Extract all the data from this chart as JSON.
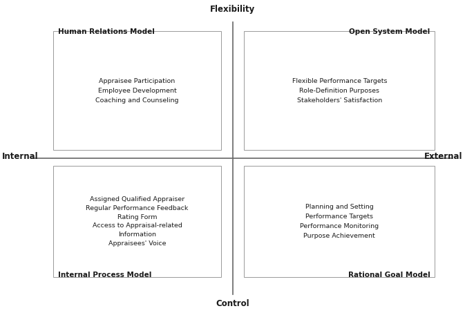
{
  "axis_labels": {
    "top": "Flexibility",
    "bottom": "Control",
    "left": "Internal",
    "right": "External"
  },
  "quadrants": {
    "top_left": {
      "model_name": "Human Relations Model",
      "items": [
        "Appraisee Participation",
        "Employee Development",
        "Coaching and Counseling"
      ]
    },
    "top_right": {
      "model_name": "Open System Model",
      "items": [
        "Flexible Performance Targets",
        "Role-Definition Purposes",
        "Stakeholders' Satisfaction"
      ]
    },
    "bottom_left": {
      "model_name": "Internal Process Model",
      "items": [
        "Assigned Qualified Appraiser",
        "Regular Performance Feedback",
        "Rating Form",
        "Access to Appraisal-related",
        "Information",
        "Appraisees' Voice"
      ]
    },
    "bottom_right": {
      "model_name": "Rational Goal Model",
      "items": [
        "Planning and Setting",
        "Performance Targets",
        "Performance Monitoring",
        "Purpose Achievement"
      ]
    }
  },
  "bg_color": "#ffffff",
  "text_color": "#1a1a1a",
  "line_color": "#666666",
  "box_line_color": "#999999",
  "model_fontsize": 7.5,
  "item_fontsize": 6.8,
  "axis_label_fontsize": 8.5,
  "figsize": [
    6.73,
    4.53
  ],
  "dpi": 100
}
